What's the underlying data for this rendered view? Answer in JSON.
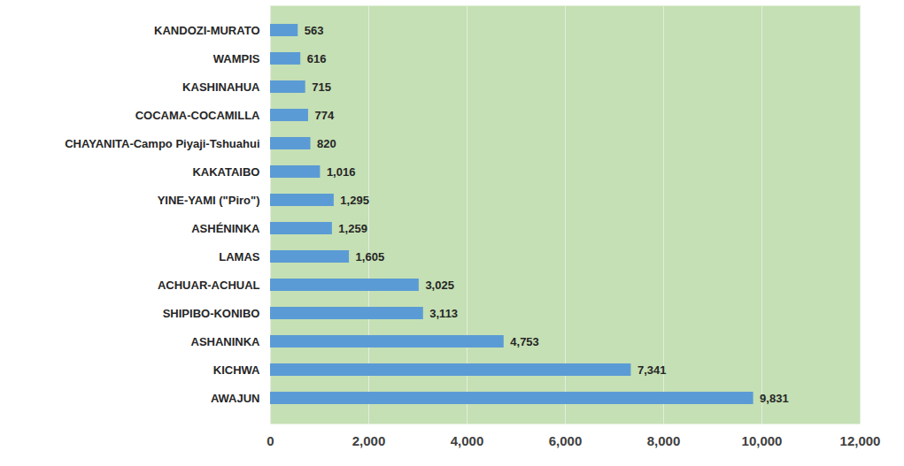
{
  "chart_data": {
    "type": "bar",
    "orientation": "horizontal",
    "categories": [
      "KANDOZI-MURATO",
      "WAMPIS",
      "KASHINAHUA",
      "COCAMA-COCAMILLA",
      "CHAYANITA-Campo Piyaji-Tshuahui",
      "KAKATAIBO",
      "YINE-YAMI (\"Piro\")",
      "ASHÉNINKA",
      "LAMAS",
      "ACHUAR-ACHUAL",
      "SHIPIBO-KONIBO",
      "ASHANINKA",
      "KICHWA",
      "AWAJUN"
    ],
    "values": [
      563,
      616,
      715,
      774,
      820,
      1016,
      1295,
      1259,
      1605,
      3025,
      3113,
      4753,
      7341,
      9831
    ],
    "value_labels": [
      "563",
      "616",
      "715",
      "774",
      "820",
      "1,016",
      "1,295",
      "1,259",
      "1,605",
      "3,025",
      "3,113",
      "4,753",
      "7,341",
      "9,831"
    ],
    "color": "#5b9bd5",
    "xlim": [
      0,
      12000
    ],
    "xticks": [
      0,
      {
        "value": 2000,
        "label": "2,000"
      },
      {
        "value": 4000,
        "label": "4,000"
      },
      {
        "value": 6000,
        "label": "6,000"
      },
      {
        "value": 8000,
        "label": "8,000"
      },
      {
        "value": 10000,
        "label": "10,000"
      },
      {
        "value": 12000,
        "label": "12,000"
      }
    ],
    "grid": true,
    "data_labels": true
  }
}
